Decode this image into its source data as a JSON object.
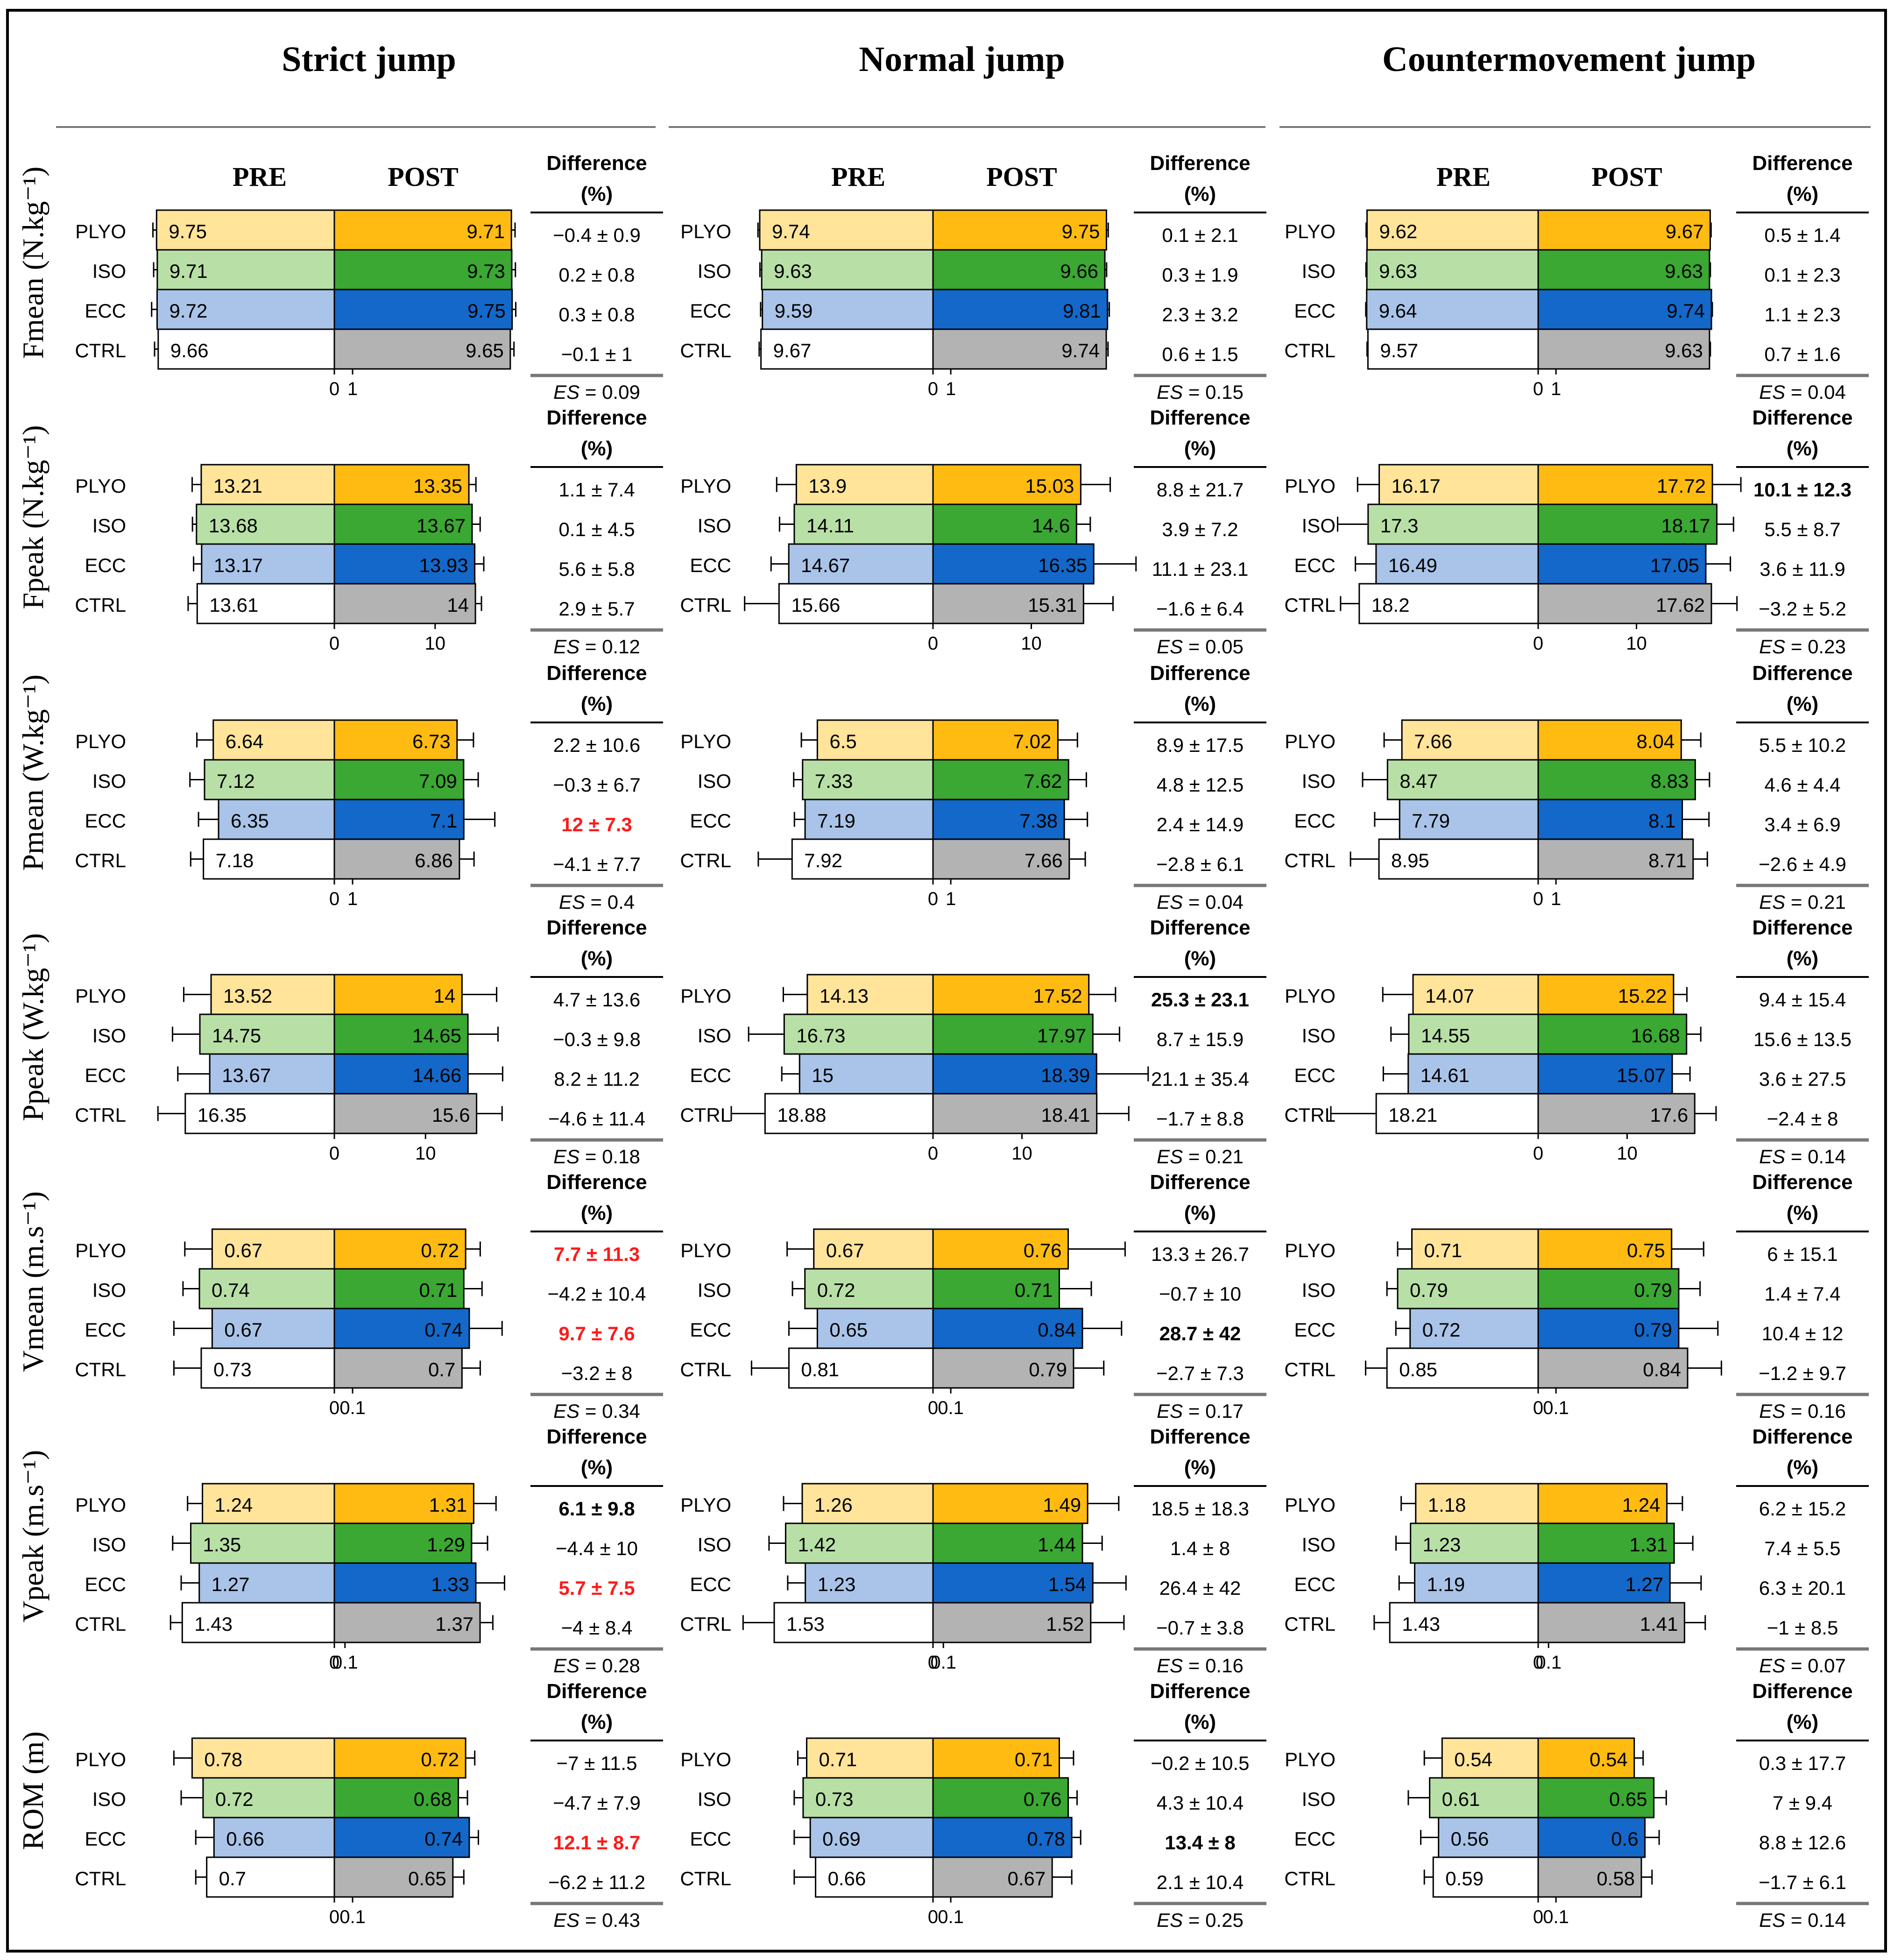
{
  "chart_data": {
    "type": "bar",
    "description_free": true,
    "columns": [
      "Strict jump",
      "Normal jump",
      "Countermovement jump"
    ],
    "rows": [
      "Fmean (N.kg⁻¹)",
      "Fpeak (N.kg⁻¹)",
      "Pmean (W.kg⁻¹)",
      "Ppeak (W.kg⁻¹)",
      "Vmean (m.s⁻¹)",
      "Vpeak (m.s⁻¹)",
      "ROM (m)"
    ],
    "row_keys": [
      "fmean",
      "fpeak",
      "pmean",
      "ppeak",
      "vmean",
      "vpeak",
      "rom"
    ],
    "groups": [
      "PLYO",
      "ISO",
      "ECC",
      "CTRL"
    ],
    "phase_labels": {
      "pre": "PRE",
      "post": "POST"
    },
    "diff_header": [
      "Difference",
      "(%)"
    ],
    "es_label": "ES",
    "colors": {
      "pre": [
        "#ffe49a",
        "#b8e0a6",
        "#a9c4e8",
        "#ffffff"
      ],
      "post": [
        "#ffbb11",
        "#3aa832",
        "#1368c9",
        "#b3b3b3"
      ],
      "sig_red": "#ff1a1a",
      "text": "#000000"
    },
    "axes": {
      "fmean": {
        "tick_labels": [
          "0",
          "1"
        ],
        "tick_values": [
          0,
          1
        ],
        "xlim": [
          -10.5,
          10.5
        ]
      },
      "fpeak": {
        "tick_labels": [
          "0",
          "10"
        ],
        "tick_values": [
          0,
          10
        ],
        "xlim": [
          -19,
          19
        ]
      },
      "pmean": {
        "tick_labels": [
          "0",
          "1"
        ],
        "tick_values": [
          0,
          1
        ],
        "xlim": [
          -10.5,
          10.5
        ]
      },
      "ppeak": {
        "tick_labels": [
          "0",
          "10"
        ],
        "tick_values": [
          0,
          10
        ],
        "xlim": [
          -21,
          21
        ]
      },
      "vmean": {
        "tick_labels": [
          "0",
          "0.1"
        ],
        "tick_values": [
          0,
          0.1
        ],
        "xlim": [
          -1.05,
          1.05
        ]
      },
      "vpeak": {
        "tick_labels": [
          "0",
          "0.1"
        ],
        "tick_values": [
          0,
          0.1
        ],
        "xlim": [
          -1.8,
          1.8
        ]
      },
      "rom": {
        "tick_labels": [
          "0",
          "0.1"
        ],
        "tick_values": [
          0,
          0.1
        ],
        "xlim": [
          -1.05,
          1.05
        ]
      }
    },
    "panels": [
      [
        {
          "pre": [
            9.75,
            9.71,
            9.72,
            9.66
          ],
          "post": [
            9.71,
            9.73,
            9.75,
            9.65
          ],
          "pre_err": [
            0.2,
            0.2,
            0.3,
            0.2
          ],
          "post_err": [
            0.2,
            0.2,
            0.2,
            0.2
          ],
          "diff": [
            "−0.4 ± 0.9",
            "0.2 ± 0.8",
            "0.3 ± 0.8",
            "−0.1 ± 1"
          ],
          "bold": [
            false,
            false,
            false,
            false
          ],
          "red": [
            false,
            false,
            false,
            false
          ],
          "es": "0.09"
        },
        {
          "pre": [
            13.21,
            13.68,
            13.17,
            13.61
          ],
          "post": [
            13.35,
            13.67,
            13.93,
            14
          ],
          "pre_err": [
            0.9,
            0.4,
            0.8,
            0.9
          ],
          "post_err": [
            0.7,
            0.8,
            0.9,
            0.6
          ],
          "diff": [
            "1.1 ± 7.4",
            "0.1 ± 4.5",
            "5.6 ± 5.8",
            "2.9 ± 5.7"
          ],
          "bold": [
            false,
            false,
            false,
            false
          ],
          "red": [
            false,
            false,
            false,
            false
          ],
          "es": "0.12"
        },
        {
          "pre": [
            6.64,
            7.12,
            6.35,
            7.18
          ],
          "post": [
            6.73,
            7.09,
            7.1,
            6.86
          ],
          "pre_err": [
            0.9,
            0.8,
            1.1,
            0.7
          ],
          "post_err": [
            0.9,
            0.8,
            1.7,
            0.8
          ],
          "diff": [
            "2.2 ± 10.6",
            "−0.3 ± 6.7",
            "12 ± 7.3",
            "−4.1 ± 7.7"
          ],
          "bold": [
            false,
            false,
            true,
            false
          ],
          "red": [
            false,
            false,
            true,
            false
          ],
          "es": "0.4"
        },
        {
          "pre": [
            13.52,
            14.75,
            13.67,
            16.35
          ],
          "post": [
            14,
            14.65,
            14.66,
            15.6
          ],
          "pre_err": [
            3,
            3,
            3.5,
            3
          ],
          "post_err": [
            3.8,
            3.3,
            3.8,
            2.8
          ],
          "diff": [
            "4.7 ± 13.6",
            "−0.3 ± 9.8",
            "8.2 ± 11.2",
            "−4.6 ± 11.4"
          ],
          "bold": [
            false,
            false,
            false,
            false
          ],
          "red": [
            false,
            false,
            false,
            false
          ],
          "es": "0.18"
        },
        {
          "pre": [
            0.67,
            0.74,
            0.67,
            0.73
          ],
          "post": [
            0.72,
            0.71,
            0.74,
            0.7
          ],
          "pre_err": [
            0.15,
            0.09,
            0.21,
            0.15
          ],
          "post_err": [
            0.08,
            0.1,
            0.18,
            0.1
          ],
          "diff": [
            "7.7 ± 11.3",
            "−4.2 ± 10.4",
            "9.7 ± 7.6",
            "−3.2 ± 8"
          ],
          "bold": [
            true,
            false,
            true,
            false
          ],
          "red": [
            true,
            false,
            true,
            false
          ],
          "es": "0.34"
        },
        {
          "pre": [
            1.24,
            1.35,
            1.27,
            1.43
          ],
          "post": [
            1.31,
            1.29,
            1.33,
            1.37
          ],
          "pre_err": [
            0.14,
            0.17,
            0.17,
            0.11
          ],
          "post_err": [
            0.21,
            0.15,
            0.27,
            0.12
          ],
          "diff": [
            "6.1 ± 9.8",
            "−4.4 ± 10",
            "5.7 ± 7.5",
            "−4 ± 8.4"
          ],
          "bold": [
            true,
            false,
            true,
            false
          ],
          "red": [
            false,
            false,
            true,
            false
          ],
          "es": "0.28"
        },
        {
          "pre": [
            0.78,
            0.72,
            0.66,
            0.7
          ],
          "post": [
            0.72,
            0.68,
            0.74,
            0.65
          ],
          "pre_err": [
            0.1,
            0.12,
            0.1,
            0.06
          ],
          "post_err": [
            0.05,
            0.05,
            0.05,
            0.06
          ],
          "diff": [
            "−7 ± 11.5",
            "−4.7 ± 7.9",
            "12.1 ± 8.7",
            "−6.2 ± 11.2"
          ],
          "bold": [
            false,
            false,
            true,
            false
          ],
          "red": [
            false,
            false,
            true,
            false
          ],
          "es": "0.43"
        }
      ],
      [
        {
          "pre": [
            9.74,
            9.63,
            9.59,
            9.67
          ],
          "post": [
            9.75,
            9.66,
            9.81,
            9.74
          ],
          "pre_err": [
            0.1,
            0.1,
            0.1,
            0.1
          ],
          "post_err": [
            0.1,
            0.1,
            0.1,
            0.1
          ],
          "diff": [
            "0.1 ± 2.1",
            "0.3 ± 1.9",
            "2.3 ± 3.2",
            "0.6 ± 1.5"
          ],
          "bold": [
            false,
            false,
            false,
            false
          ],
          "red": [
            false,
            false,
            false,
            false
          ],
          "es": "0.15"
        },
        {
          "pre": [
            13.9,
            14.11,
            14.67,
            15.66
          ],
          "post": [
            15.03,
            14.6,
            16.35,
            15.31
          ],
          "pre_err": [
            2,
            1.5,
            1.8,
            3.5
          ],
          "post_err": [
            3,
            1.4,
            4.3,
            3
          ],
          "diff": [
            "8.8 ± 21.7",
            "3.9 ± 7.2",
            "11.1 ± 23.1",
            "−1.6 ± 6.4"
          ],
          "bold": [
            false,
            false,
            false,
            false
          ],
          "red": [
            false,
            false,
            false,
            false
          ],
          "es": "0.05"
        },
        {
          "pre": [
            6.5,
            7.33,
            7.19,
            7.92
          ],
          "post": [
            7.02,
            7.62,
            7.38,
            7.66
          ],
          "pre_err": [
            0.9,
            0.5,
            0.6,
            1.9
          ],
          "post_err": [
            1.1,
            1,
            1.3,
            0.9
          ],
          "diff": [
            "8.9 ± 17.5",
            "4.8 ± 12.5",
            "2.4 ± 14.9",
            "−2.8 ± 6.1"
          ],
          "bold": [
            false,
            false,
            false,
            false
          ],
          "red": [
            false,
            false,
            false,
            false
          ],
          "es": "0.04"
        },
        {
          "pre": [
            14.13,
            16.73,
            15,
            18.88
          ],
          "post": [
            17.52,
            17.97,
            18.39,
            18.41
          ],
          "pre_err": [
            2.7,
            4,
            2,
            3.8
          ],
          "post_err": [
            3,
            3,
            5.8,
            3.6
          ],
          "diff": [
            "25.3 ± 23.1",
            "8.7 ± 15.9",
            "21.1 ± 35.4",
            "−1.7 ± 8.8"
          ],
          "bold": [
            true,
            false,
            false,
            false
          ],
          "red": [
            false,
            false,
            false,
            false
          ],
          "es": "0.21"
        },
        {
          "pre": [
            0.67,
            0.72,
            0.65,
            0.81
          ],
          "post": [
            0.76,
            0.71,
            0.84,
            0.79
          ],
          "pre_err": [
            0.15,
            0.07,
            0.16,
            0.21
          ],
          "post_err": [
            0.32,
            0.18,
            0.22,
            0.17
          ],
          "diff": [
            "13.3 ± 26.7",
            "−0.7 ± 10",
            "28.7 ± 42",
            "−2.7 ± 7.3"
          ],
          "bold": [
            false,
            false,
            true,
            false
          ],
          "red": [
            false,
            false,
            false,
            false
          ],
          "es": "0.17"
        },
        {
          "pre": [
            1.26,
            1.42,
            1.23,
            1.53
          ],
          "post": [
            1.49,
            1.44,
            1.54,
            1.52
          ],
          "pre_err": [
            0.18,
            0.16,
            0.17,
            0.3
          ],
          "post_err": [
            0.3,
            0.19,
            0.32,
            0.32
          ],
          "diff": [
            "18.5 ± 18.3",
            "1.4 ± 8",
            "26.4 ± 42",
            "−0.7 ± 3.8"
          ],
          "bold": [
            false,
            false,
            false,
            false
          ],
          "red": [
            false,
            false,
            false,
            false
          ],
          "es": "0.16"
        },
        {
          "pre": [
            0.71,
            0.73,
            0.69,
            0.66
          ],
          "post": [
            0.71,
            0.76,
            0.78,
            0.67
          ],
          "pre_err": [
            0.05,
            0.05,
            0.09,
            0.12
          ],
          "post_err": [
            0.08,
            0.05,
            0.05,
            0.11
          ],
          "diff": [
            "−0.2 ± 10.5",
            "4.3 ± 10.4",
            "13.4 ± 8",
            "2.1 ± 10.4"
          ],
          "bold": [
            false,
            false,
            true,
            false
          ],
          "red": [
            false,
            false,
            false,
            false
          ],
          "es": "0.25"
        }
      ],
      [
        {
          "pre": [
            9.62,
            9.63,
            9.64,
            9.57
          ],
          "post": [
            9.67,
            9.63,
            9.74,
            9.63
          ],
          "pre_err": [
            0.05,
            0.05,
            0.05,
            0.05
          ],
          "post_err": [
            0.05,
            0.05,
            0.05,
            0.05
          ],
          "diff": [
            "0.5 ± 1.4",
            "0.1 ± 2.3",
            "1.1 ± 2.3",
            "0.7 ± 1.6"
          ],
          "bold": [
            false,
            false,
            false,
            false
          ],
          "red": [
            false,
            false,
            false,
            false
          ],
          "es": "0.04"
        },
        {
          "pre": [
            16.17,
            17.3,
            16.49,
            18.2
          ],
          "post": [
            17.72,
            18.17,
            17.05,
            17.62
          ],
          "pre_err": [
            2.2,
            3.1,
            2.1,
            1.9
          ],
          "post_err": [
            2.9,
            1.7,
            2.5,
            2.6
          ],
          "diff": [
            "10.1 ± 12.3",
            "5.5 ± 8.7",
            "3.6 ± 11.9",
            "−3.2 ± 5.2"
          ],
          "bold": [
            true,
            false,
            false,
            false
          ],
          "red": [
            false,
            false,
            false,
            false
          ],
          "es": "0.23"
        },
        {
          "pre": [
            7.66,
            8.47,
            7.79,
            8.95
          ],
          "post": [
            8.04,
            8.83,
            8.1,
            8.71
          ],
          "pre_err": [
            1,
            1.4,
            1.4,
            1.6
          ],
          "post_err": [
            1.1,
            0.8,
            1.5,
            0.8
          ],
          "diff": [
            "5.5 ± 10.2",
            "4.6 ± 4.4",
            "3.4 ± 6.9",
            "−2.6 ± 4.9"
          ],
          "bold": [
            false,
            false,
            false,
            false
          ],
          "red": [
            false,
            false,
            false,
            false
          ],
          "es": "0.21"
        },
        {
          "pre": [
            14.07,
            14.55,
            14.61,
            18.21
          ],
          "post": [
            15.22,
            16.68,
            15.07,
            17.6
          ],
          "pre_err": [
            3.4,
            2,
            2.8,
            5.1
          ],
          "post_err": [
            1.5,
            1.6,
            2,
            2.4
          ],
          "diff": [
            "9.4 ± 15.4",
            "15.6 ± 13.5",
            "3.6 ± 27.5",
            "−2.4 ± 8"
          ],
          "bold": [
            false,
            false,
            false,
            false
          ],
          "red": [
            false,
            false,
            false,
            false
          ],
          "es": "0.14"
        },
        {
          "pre": [
            0.71,
            0.79,
            0.72,
            0.85
          ],
          "post": [
            0.75,
            0.79,
            0.79,
            0.84
          ],
          "pre_err": [
            0.08,
            0.06,
            0.08,
            0.12
          ],
          "post_err": [
            0.18,
            0.12,
            0.22,
            0.19
          ],
          "diff": [
            "6 ± 15.1",
            "1.4 ± 7.4",
            "10.4 ± 12",
            "−1.2 ± 9.7"
          ],
          "bold": [
            false,
            false,
            false,
            false
          ],
          "red": [
            false,
            false,
            false,
            false
          ],
          "es": "0.16"
        },
        {
          "pre": [
            1.18,
            1.23,
            1.19,
            1.43
          ],
          "post": [
            1.24,
            1.31,
            1.27,
            1.41
          ],
          "pre_err": [
            0.14,
            0.14,
            0.15,
            0.15
          ],
          "post_err": [
            0.15,
            0.18,
            0.3,
            0.2
          ],
          "diff": [
            "6.2 ± 15.2",
            "7.4 ± 5.5",
            "6.3 ± 20.1",
            "−1 ± 8.5"
          ],
          "bold": [
            false,
            false,
            false,
            false
          ],
          "red": [
            false,
            false,
            false,
            false
          ],
          "es": "0.07"
        },
        {
          "pre": [
            0.54,
            0.61,
            0.56,
            0.59
          ],
          "post": [
            0.54,
            0.65,
            0.6,
            0.58
          ],
          "pre_err": [
            0.1,
            0.12,
            0.1,
            0.05
          ],
          "post_err": [
            0.05,
            0.07,
            0.08,
            0.06
          ],
          "diff": [
            "0.3 ± 17.7",
            "7 ± 9.4",
            "8.8 ± 12.6",
            "−1.7 ± 6.1"
          ],
          "bold": [
            false,
            false,
            false,
            false
          ],
          "red": [
            false,
            false,
            false,
            false
          ],
          "es": "0.14"
        }
      ]
    ]
  }
}
